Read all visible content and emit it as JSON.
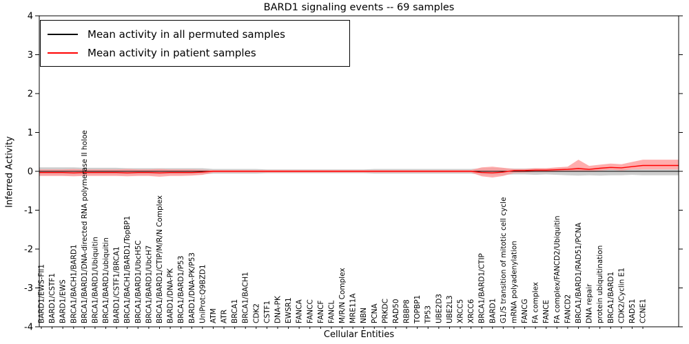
{
  "title": "BARD1 signaling events -- 69 samples",
  "axes": {
    "xlabel": "Cellular Entities",
    "ylabel": "Inferred Activity"
  },
  "legend": {
    "items": [
      {
        "label": "Mean activity in all permuted samples",
        "color": "#000000"
      },
      {
        "label": "Mean activity in patient samples",
        "color": "#ff0000"
      }
    ]
  },
  "chart_data": {
    "type": "line",
    "title": "BARD1 signaling events -- 69 samples",
    "xlabel": "Cellular Entities",
    "ylabel": "Inferred Activity",
    "ylim": [
      -4,
      4
    ],
    "yticks": [
      -4,
      -3,
      -2,
      -1,
      0,
      1,
      2,
      3,
      4
    ],
    "grid": false,
    "legend_position": "upper left",
    "categories": [
      "BARD1/EWS-Fli1",
      "BARD1/CSTF1",
      "BARD1/EWS",
      "BRCA1/BACH1/BARD1",
      "BRCA1/BARD1/DNA-directed RNA polymerase II holoe",
      "BRCA1/BARD1/Ubiquitin",
      "BRCA1/BARD1/ubiquitin",
      "BARD1/CSTF1/BRCA1",
      "BRCA1/BACH1/BARD1/TopBP1",
      "BRCA1/BARD1/UbcH5C",
      "BRCA1/BARD1/UbcH7",
      "BRCA1/BARD1/CTIP/M/R/N Complex",
      "BARD1/DNA-PK",
      "BRCA1/BARD1/P53",
      "BARD1/DNA-PK/P53",
      "UniProt:Q9BZD1",
      "ATM",
      "ATR",
      "BRCA1",
      "BRCA1/BACH1",
      "CDK2",
      "CSTF1",
      "DNA-PK",
      "EWSR1",
      "FANCA",
      "FANCC",
      "FANCF",
      "FANCL",
      "M/R/N Complex",
      "MRE11A",
      "NBN",
      "PCNA",
      "PRKDC",
      "RAD50",
      "RBBP8",
      "TOPBP1",
      "TP53",
      "UBE2D3",
      "UBE2L3",
      "XRCC5",
      "XRCC6",
      "BRCA1/BARD1/CTIP",
      "BARD1",
      "G1/S transition of mitotic cell cycle",
      "mRNA polyadenylation",
      "FANCG",
      "FA complex",
      "FANCE",
      "FA complex/FANCD2/Ubiquitin",
      "FANCD2",
      "BRCA1/BARD1/RAD51/PCNA",
      "DNA repair",
      "protein ubiquitination",
      "BRCA1/BARD1",
      "CDK2/Cyclin E1",
      "RAD51",
      "CCNE1"
    ],
    "series": [
      {
        "name": "Mean activity in all permuted samples",
        "color": "#000000",
        "band_color": "#c8c8c8",
        "values": [
          0,
          0,
          0,
          0,
          0,
          0,
          0,
          0,
          0,
          0,
          0,
          0,
          0,
          0,
          0,
          0,
          0,
          0,
          0,
          0,
          0,
          0,
          0,
          0,
          0,
          0,
          0,
          0,
          0,
          0,
          0,
          0,
          0,
          0,
          0,
          0,
          0,
          0,
          0,
          0,
          0,
          0,
          0,
          0,
          0,
          0,
          0,
          0,
          0,
          0,
          0,
          0,
          0,
          0,
          0,
          0,
          0
        ],
        "band_upper": [
          0.1,
          0.1,
          0.1,
          0.1,
          0.09,
          0.09,
          0.09,
          0.09,
          0.08,
          0.08,
          0.08,
          0.08,
          0.08,
          0.08,
          0.08,
          0.08,
          0.06,
          0.06,
          0.06,
          0.06,
          0.06,
          0.05,
          0.05,
          0.05,
          0.05,
          0.05,
          0.05,
          0.05,
          0.05,
          0.05,
          0.05,
          0.06,
          0.06,
          0.06,
          0.06,
          0.06,
          0.06,
          0.06,
          0.06,
          0.06,
          0.06,
          0.08,
          0.09,
          0.08,
          0.07,
          0.07,
          0.08,
          0.07,
          0.08,
          0.09,
          0.1,
          0.08,
          0.09,
          0.08,
          0.07,
          0.06,
          0.05
        ],
        "band_lower": [
          -0.1,
          -0.1,
          -0.1,
          -0.1,
          -0.09,
          -0.09,
          -0.09,
          -0.09,
          -0.09,
          -0.09,
          -0.09,
          -0.09,
          -0.08,
          -0.08,
          -0.08,
          -0.08,
          -0.06,
          -0.06,
          -0.06,
          -0.06,
          -0.06,
          -0.05,
          -0.05,
          -0.05,
          -0.05,
          -0.05,
          -0.05,
          -0.05,
          -0.05,
          -0.05,
          -0.05,
          -0.06,
          -0.06,
          -0.06,
          -0.06,
          -0.06,
          -0.06,
          -0.06,
          -0.06,
          -0.06,
          -0.06,
          -0.09,
          -0.1,
          -0.09,
          -0.08,
          -0.08,
          -0.09,
          -0.08,
          -0.09,
          -0.1,
          -0.11,
          -0.1,
          -0.11,
          -0.1,
          -0.1,
          -0.09,
          -0.1
        ]
      },
      {
        "name": "Mean activity in patient samples",
        "color": "#ff0000",
        "band_color": "#ff9999",
        "values": [
          -0.03,
          -0.03,
          -0.03,
          -0.04,
          -0.03,
          -0.03,
          -0.03,
          -0.03,
          -0.04,
          -0.03,
          -0.03,
          -0.04,
          -0.03,
          -0.03,
          -0.03,
          -0.02,
          0,
          0,
          0,
          0,
          0,
          0,
          0,
          0,
          0,
          0,
          0,
          0,
          0,
          0,
          0,
          0,
          0,
          0,
          0,
          0,
          0,
          0,
          0,
          0,
          0,
          -0.03,
          -0.04,
          -0.02,
          0.02,
          0.02,
          0.03,
          0.03,
          0.04,
          0.05,
          0.07,
          0.05,
          0.08,
          0.1,
          0.09,
          0.12,
          0.15
        ],
        "band_upper": [
          0.05,
          0.05,
          0.05,
          0.06,
          0.05,
          0.05,
          0.05,
          0.05,
          0.06,
          0.05,
          0.05,
          0.06,
          0.05,
          0.05,
          0.05,
          0.04,
          0.03,
          0.03,
          0.03,
          0.03,
          0.03,
          0.03,
          0.03,
          0.03,
          0.03,
          0.03,
          0.03,
          0.03,
          0.03,
          0.03,
          0.03,
          0.03,
          0.03,
          0.03,
          0.03,
          0.03,
          0.03,
          0.03,
          0.03,
          0.03,
          0.03,
          0.1,
          0.12,
          0.09,
          0.06,
          0.06,
          0.08,
          0.08,
          0.1,
          0.12,
          0.3,
          0.14,
          0.17,
          0.2,
          0.18,
          0.24,
          0.3
        ],
        "band_lower": [
          -0.12,
          -0.12,
          -0.12,
          -0.13,
          -0.12,
          -0.12,
          -0.12,
          -0.12,
          -0.13,
          -0.12,
          -0.12,
          -0.14,
          -0.12,
          -0.12,
          -0.11,
          -0.09,
          -0.03,
          -0.03,
          -0.03,
          -0.03,
          -0.03,
          -0.03,
          -0.03,
          -0.03,
          -0.03,
          -0.03,
          -0.03,
          -0.03,
          -0.03,
          -0.03,
          -0.03,
          -0.03,
          -0.03,
          -0.03,
          -0.03,
          -0.03,
          -0.03,
          -0.03,
          -0.03,
          -0.03,
          -0.03,
          -0.13,
          -0.16,
          -0.12,
          -0.04,
          -0.03,
          -0.02,
          -0.02,
          -0.01,
          0.0,
          0.01,
          0.0,
          0.02,
          0.04,
          0.02,
          0.05,
          0.05
        ]
      }
    ]
  }
}
